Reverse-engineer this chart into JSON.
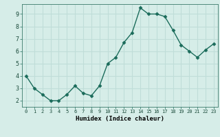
{
  "x": [
    0,
    1,
    2,
    3,
    4,
    5,
    6,
    7,
    8,
    9,
    10,
    11,
    12,
    13,
    14,
    15,
    16,
    17,
    18,
    19,
    20,
    21,
    22,
    23
  ],
  "y": [
    4.0,
    3.0,
    2.5,
    2.0,
    2.0,
    2.5,
    3.2,
    2.6,
    2.4,
    3.2,
    5.0,
    5.5,
    6.7,
    7.5,
    9.5,
    9.0,
    9.0,
    8.8,
    7.7,
    6.5,
    6.0,
    5.5,
    6.1,
    6.6
  ],
  "xlabel": "Humidex (Indice chaleur)",
  "ylim": [
    1.5,
    9.8
  ],
  "xlim": [
    -0.5,
    23.5
  ],
  "yticks": [
    2,
    3,
    4,
    5,
    6,
    7,
    8,
    9
  ],
  "xticks": [
    0,
    1,
    2,
    3,
    4,
    5,
    6,
    7,
    8,
    9,
    10,
    11,
    12,
    13,
    14,
    15,
    16,
    17,
    18,
    19,
    20,
    21,
    22,
    23
  ],
  "line_color": "#1a6b5a",
  "marker_color": "#1a6b5a",
  "bg_color": "#d6ede8",
  "grid_color": "#c0ddd8",
  "axes_bg": "#d6ede8"
}
